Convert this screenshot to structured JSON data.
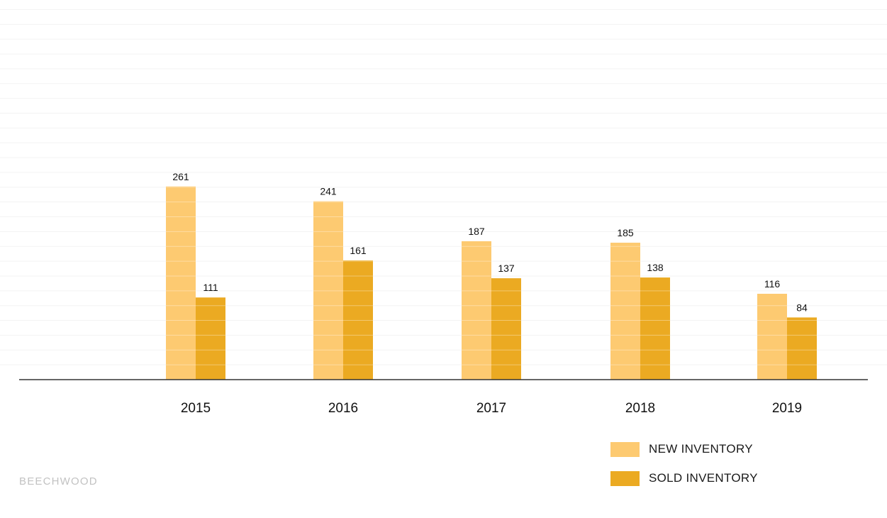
{
  "chart_data": {
    "type": "bar",
    "categories": [
      "2015",
      "2016",
      "2017",
      "2018",
      "2019"
    ],
    "series": [
      {
        "name": "NEW INVENTORY",
        "values": [
          261,
          241,
          187,
          185,
          116
        ],
        "color": "#fdca71"
      },
      {
        "name": "SOLD INVENTORY",
        "values": [
          111,
          161,
          137,
          138,
          84
        ],
        "color": "#ebaa22"
      }
    ],
    "ylim": [
      0,
      500
    ],
    "grid": true,
    "legend_position": "bottom-right",
    "data_labels": true,
    "title": "",
    "xlabel": "",
    "ylabel": ""
  },
  "branding": {
    "text": "BEECHWOOD"
  },
  "colors": {
    "axis": "#333333",
    "grid": "#f3f3f3",
    "label": "#111111"
  }
}
